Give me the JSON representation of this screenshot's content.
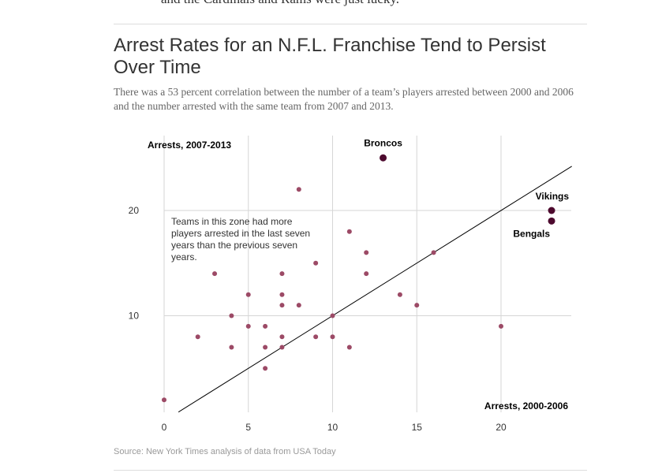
{
  "intro_text": "and the Cardinals and Rams were just lucky.",
  "title": "Arrest Rates for an N.F.L. Franchise Tend to Persist Over Time",
  "subtitle": "There was a 53 percent correlation between the number of a team’s players arrested between 2000 and 2006 and the number arrested with the same team from 2007 and 2013.",
  "source": "Source: New York Times analysis of data from USA Today",
  "chart_data": {
    "type": "scatter",
    "xlabel": "Arrests, 2000-2006",
    "ylabel": "Arrests, 2007-2013",
    "x_ticks": [
      "0",
      "5",
      "10",
      "15",
      "20"
    ],
    "y_ticks": [
      "10",
      "20"
    ],
    "xlim": [
      0,
      24
    ],
    "ylim": [
      0,
      27
    ],
    "grid": true,
    "reference_line": "y = x",
    "annotation": "Teams in this zone had more players arrested in the last seven years than the previous seven years.",
    "colors": {
      "point": "#9c4a66",
      "highlight": "#4d0a2e",
      "line": "#000000",
      "grid": "#d6d6d6"
    },
    "points": [
      [
        0,
        2
      ],
      [
        2,
        8
      ],
      [
        3,
        14
      ],
      [
        4,
        10
      ],
      [
        4,
        7
      ],
      [
        5,
        12
      ],
      [
        5,
        9
      ],
      [
        6,
        9
      ],
      [
        6,
        7
      ],
      [
        6,
        5
      ],
      [
        7,
        14
      ],
      [
        7,
        12
      ],
      [
        7,
        11
      ],
      [
        7,
        8
      ],
      [
        7,
        7
      ],
      [
        8,
        22
      ],
      [
        8,
        11
      ],
      [
        9,
        15
      ],
      [
        9,
        8
      ],
      [
        10,
        10
      ],
      [
        10,
        8
      ],
      [
        11,
        18
      ],
      [
        11,
        7
      ],
      [
        12,
        16
      ],
      [
        12,
        14
      ],
      [
        14,
        12
      ],
      [
        15,
        11
      ],
      [
        16,
        16
      ],
      [
        20,
        9
      ]
    ],
    "highlighted": [
      {
        "name": "Broncos",
        "x": 13,
        "y": 25
      },
      {
        "name": "Vikings",
        "x": 23,
        "y": 20
      },
      {
        "name": "Bengals",
        "x": 23,
        "y": 19
      }
    ]
  }
}
